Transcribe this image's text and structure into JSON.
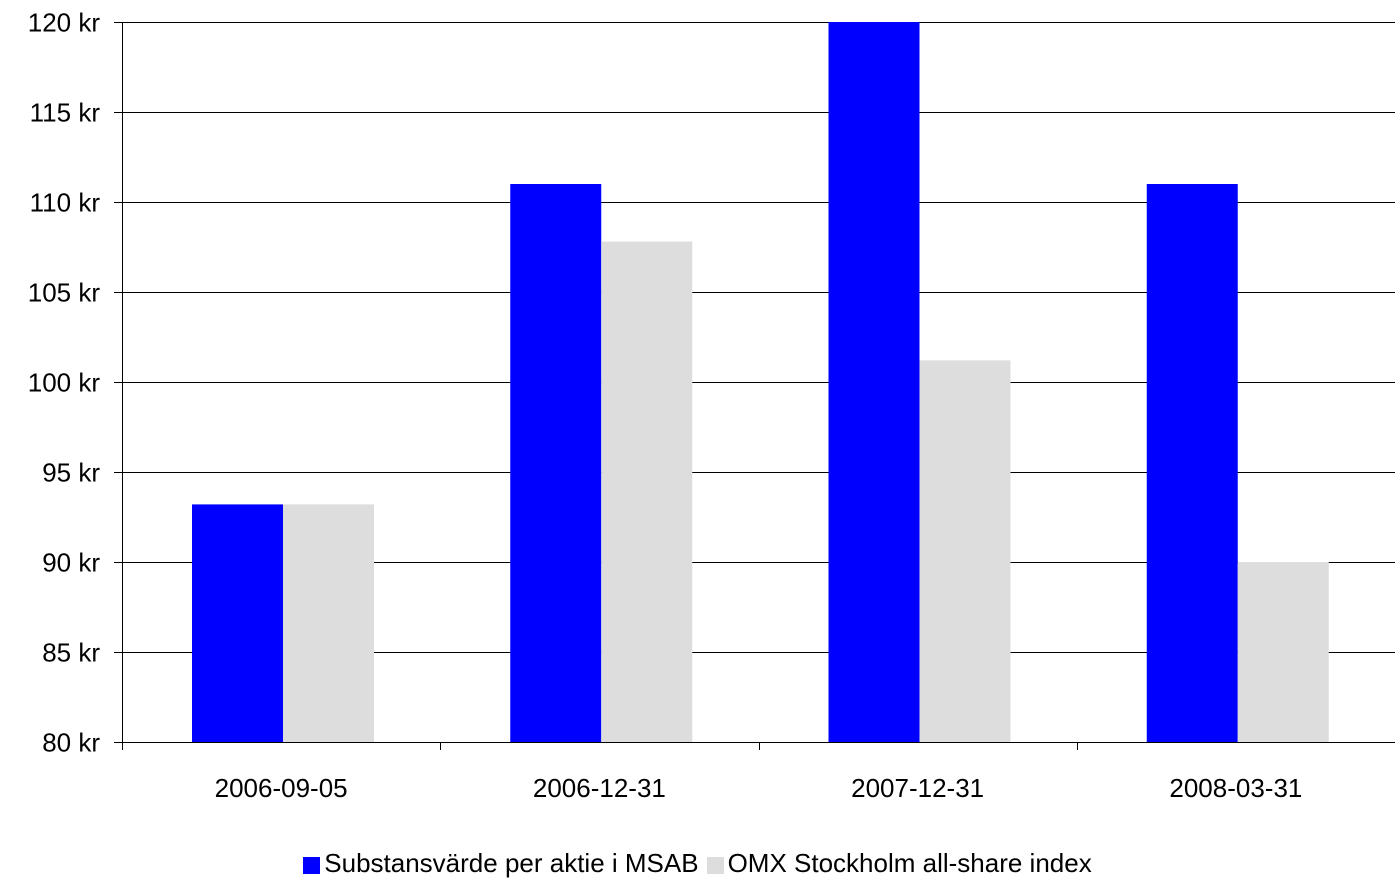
{
  "chart_data": {
    "type": "bar",
    "title": "",
    "xlabel": "",
    "ylabel": "",
    "categories": [
      "2006-09-05",
      "2006-12-31",
      "2007-12-31",
      "2008-03-31"
    ],
    "series": [
      {
        "name": "Substansvärde per aktie i MSAB",
        "color": "#0000ff",
        "values": [
          93.2,
          111.0,
          120.0,
          111.0
        ]
      },
      {
        "name": "OMX Stockholm all-share index",
        "color": "#dddddd",
        "values": [
          93.2,
          107.8,
          101.2,
          90.0
        ]
      }
    ],
    "ylim": [
      80,
      120
    ],
    "yticks": [
      80,
      85,
      90,
      95,
      100,
      105,
      110,
      115,
      120
    ],
    "ytick_labels": [
      "80 kr",
      "85 kr",
      "90 kr",
      "95 kr",
      "100 kr",
      "105 kr",
      "110 kr",
      "115 kr",
      "120 kr"
    ],
    "grid": true,
    "legend_position": "bottom"
  }
}
